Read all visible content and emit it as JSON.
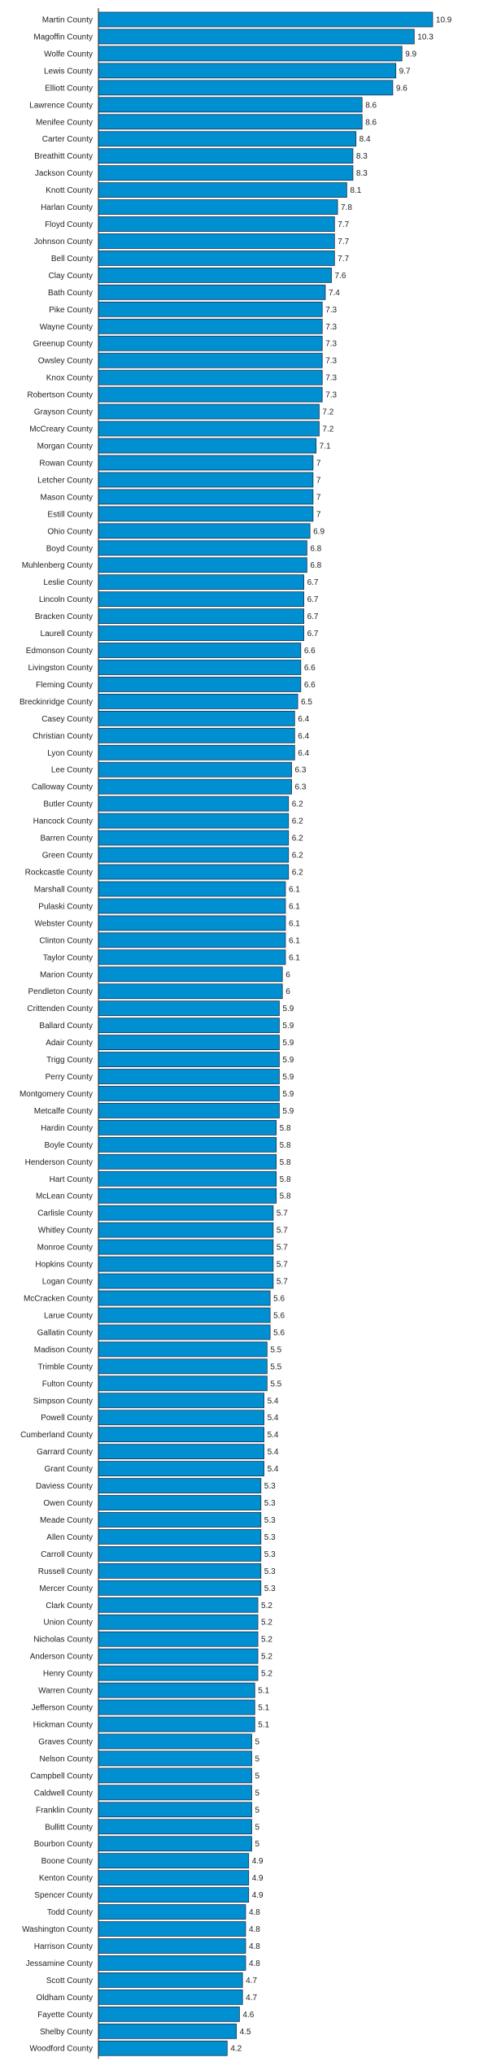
{
  "chart_data": {
    "type": "bar",
    "orientation": "horizontal",
    "bar_color": "#0090d2",
    "bar_edge_color": "#1f2f4a",
    "xlim": [
      0,
      11.3
    ],
    "grid": false,
    "legend": "none",
    "categories": [
      "Martin County",
      "Magoffin County",
      "Wolfe County",
      "Lewis County",
      "Elliott County",
      "Lawrence County",
      "Menifee County",
      "Carter County",
      "Breathitt County",
      "Jackson County",
      "Knott County",
      "Harlan County",
      "Floyd County",
      "Johnson County",
      "Bell County",
      "Clay County",
      "Bath County",
      "Pike County",
      "Wayne County",
      "Greenup County",
      "Owsley County",
      "Knox County",
      "Robertson County",
      "Grayson County",
      "McCreary County",
      "Morgan County",
      "Rowan County",
      "Letcher County",
      "Mason County",
      "Estill County",
      "Ohio County",
      "Boyd County",
      "Muhlenberg County",
      "Leslie County",
      "Lincoln County",
      "Bracken County",
      "Laurell County",
      "Edmonson County",
      "Livingston County",
      "Fleming County",
      "Breckinridge County",
      "Casey County",
      "Christian County",
      "Lyon County",
      "Lee County",
      "Calloway County",
      "Butler County",
      "Hancock County",
      "Barren County",
      "Green County",
      "Rockcastle County",
      "Marshall County",
      "Pulaski County",
      "Webster County",
      "Clinton County",
      "Taylor County",
      "Marion County",
      "Pendleton County",
      "Crittenden County",
      "Ballard County",
      "Adair County",
      "Trigg County",
      "Perry County",
      "Montgomery County",
      "Metcalfe County",
      "Hardin County",
      "Boyle County",
      "Henderson County",
      "Hart County",
      "McLean County",
      "Carlisle County",
      "Whitley County",
      "Monroe County",
      "Hopkins County",
      "Logan County",
      "McCracken County",
      "Larue County",
      "Gallatin County",
      "Madison County",
      "Trimble County",
      "Fulton County",
      "Simpson County",
      "Powell County",
      "Cumberland County",
      "Garrard County",
      "Grant County",
      "Daviess County",
      "Owen County",
      "Meade County",
      "Allen County",
      "Carroll County",
      "Russell County",
      "Mercer County",
      "Clark County",
      "Union County",
      "Nicholas County",
      "Anderson County",
      "Henry County",
      "Warren County",
      "Jefferson County",
      "Hickman County",
      "Graves County",
      "Nelson County",
      "Campbell County",
      "Caldwell County",
      "Franklin County",
      "Bullitt County",
      "Bourbon County",
      "Boone County",
      "Kenton County",
      "Spencer County",
      "Todd County",
      "Washington County",
      "Harrison County",
      "Jessamine County",
      "Scott County",
      "Oldham County",
      "Fayette County",
      "Shelby County",
      "Woodford County"
    ],
    "values": [
      10.9,
      10.3,
      9.9,
      9.7,
      9.6,
      8.6,
      8.6,
      8.4,
      8.3,
      8.3,
      8.1,
      7.8,
      7.7,
      7.7,
      7.7,
      7.6,
      7.4,
      7.3,
      7.3,
      7.3,
      7.3,
      7.3,
      7.3,
      7.2,
      7.2,
      7.1,
      7,
      7,
      7,
      7,
      6.9,
      6.8,
      6.8,
      6.7,
      6.7,
      6.7,
      6.7,
      6.6,
      6.6,
      6.6,
      6.5,
      6.4,
      6.4,
      6.4,
      6.3,
      6.3,
      6.2,
      6.2,
      6.2,
      6.2,
      6.2,
      6.1,
      6.1,
      6.1,
      6.1,
      6.1,
      6,
      6,
      5.9,
      5.9,
      5.9,
      5.9,
      5.9,
      5.9,
      5.9,
      5.8,
      5.8,
      5.8,
      5.8,
      5.8,
      5.7,
      5.7,
      5.7,
      5.7,
      5.7,
      5.6,
      5.6,
      5.6,
      5.5,
      5.5,
      5.5,
      5.4,
      5.4,
      5.4,
      5.4,
      5.4,
      5.3,
      5.3,
      5.3,
      5.3,
      5.3,
      5.3,
      5.3,
      5.2,
      5.2,
      5.2,
      5.2,
      5.2,
      5.1,
      5.1,
      5.1,
      5,
      5,
      5,
      5,
      5,
      5,
      5,
      4.9,
      4.9,
      4.9,
      4.8,
      4.8,
      4.8,
      4.8,
      4.7,
      4.7,
      4.6,
      4.5,
      4.2
    ]
  }
}
